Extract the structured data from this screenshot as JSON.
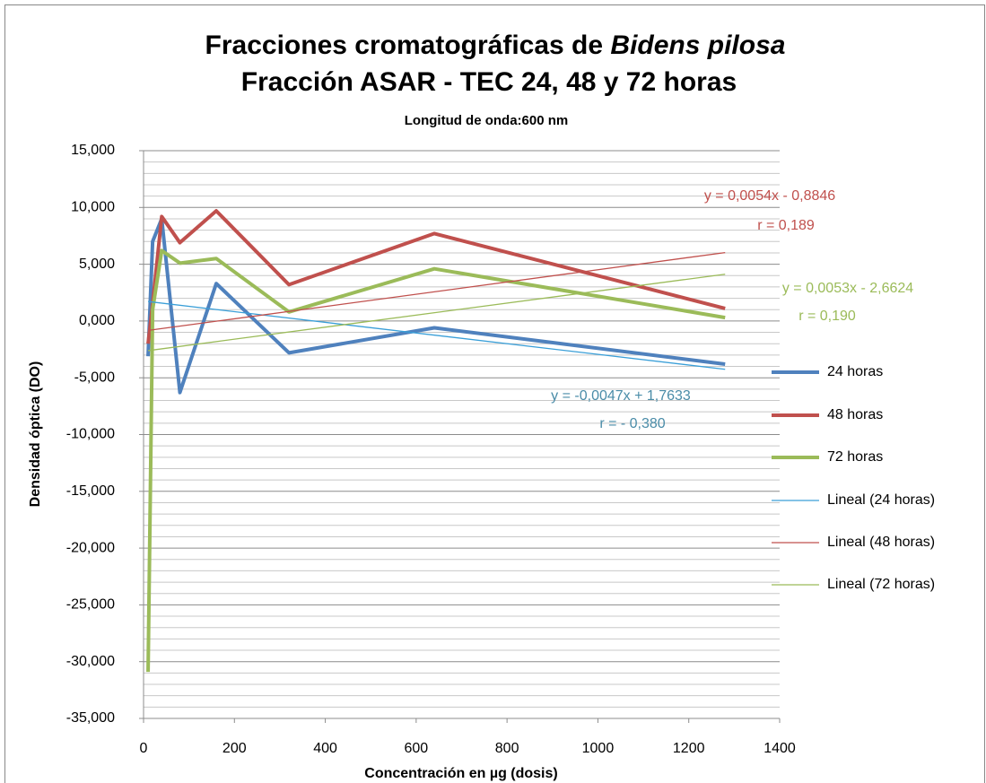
{
  "chart_data": {
    "type": "line",
    "title": [
      "Fracciones cromatográficas de ",
      "Bidens pilosa",
      "Fracción ASAR - TEC 24, 48 y 72 horas"
    ],
    "subtitle": "Longitud de onda:600 nm",
    "x_label": "Concentración en µg (dosis)",
    "y_label": "Densidad óptica (DO)",
    "xlim": [
      0,
      1400
    ],
    "xticks": [
      0,
      200,
      400,
      600,
      800,
      1000,
      1200,
      1400
    ],
    "ylim": [
      -35,
      15
    ],
    "yticks": [
      {
        "value": -35,
        "label": "-35,000"
      },
      {
        "value": -30,
        "label": "-30,000"
      },
      {
        "value": -25,
        "label": "-25,000"
      },
      {
        "value": -20,
        "label": "-20,000"
      },
      {
        "value": -15,
        "label": "-15,000"
      },
      {
        "value": -10,
        "label": "-10,000"
      },
      {
        "value": -5,
        "label": "-5,000"
      },
      {
        "value": 0,
        "label": "0,000"
      },
      {
        "value": 5,
        "label": "5,000"
      },
      {
        "value": 10,
        "label": "10,000"
      },
      {
        "value": 15,
        "label": "15,000"
      }
    ],
    "minor_yticks": [
      -34,
      -33,
      -32,
      -31,
      -29,
      -28,
      -27,
      -26,
      -24,
      -23,
      -22,
      -21,
      -19,
      -18,
      -17,
      -16,
      -14,
      -13,
      -12,
      -11,
      -9,
      -8,
      -7,
      -6,
      -4,
      -3,
      -2,
      -1,
      1,
      2,
      3,
      4,
      6,
      7,
      8,
      9,
      11,
      12,
      13,
      14
    ],
    "grid": true,
    "legend": "right",
    "series": [
      {
        "name": "24 horas",
        "color": "#4f81bd",
        "width": 4,
        "x": [
          10,
          20,
          40,
          80,
          160,
          320,
          640,
          1280
        ],
        "values": [
          -3.1,
          7.0,
          9.0,
          -6.3,
          3.3,
          -2.8,
          -0.6,
          -3.8
        ]
      },
      {
        "name": "48 horas",
        "color": "#c0504d",
        "width": 4,
        "x": [
          10,
          20,
          40,
          80,
          160,
          320,
          640,
          1280
        ],
        "values": [
          -2.0,
          1.5,
          9.2,
          6.9,
          9.7,
          3.2,
          7.7,
          1.1
        ]
      },
      {
        "name": "72 horas",
        "color": "#9bbb59",
        "width": 4,
        "x": [
          10,
          20,
          40,
          80,
          160,
          320,
          640,
          1280
        ],
        "values": [
          -30.9,
          1.0,
          6.2,
          5.1,
          5.5,
          0.8,
          4.6,
          0.3
        ]
      },
      {
        "name": "Lineal (24 horas)",
        "color": "#3a9fd8",
        "width": 1.3,
        "x": [
          10,
          1280
        ],
        "values": [
          1.7163,
          -4.2527
        ]
      },
      {
        "name": "Lineal (48 horas)",
        "color": "#c0504d",
        "width": 1.3,
        "x": [
          10,
          1280
        ],
        "values": [
          -0.8306,
          6.0274
        ]
      },
      {
        "name": "Lineal (72 horas)",
        "color": "#9bbb59",
        "width": 1.3,
        "x": [
          10,
          1280
        ],
        "values": [
          -2.6094,
          4.1216
        ]
      }
    ],
    "annotations": [
      {
        "text": "y = 0,0054x - 0,8846",
        "color": "#c0504d"
      },
      {
        "text": "r = 0,189",
        "color": "#c0504d"
      },
      {
        "text": "y = 0,0053x - 2,6624",
        "color": "#9bbb59"
      },
      {
        "text": "r = 0,190",
        "color": "#9bbb59"
      },
      {
        "text": "y = -0,0047x + 1,7633",
        "color": "#4a8ca8"
      },
      {
        "text": "r = - 0,380",
        "color": "#4a8ca8"
      }
    ]
  }
}
